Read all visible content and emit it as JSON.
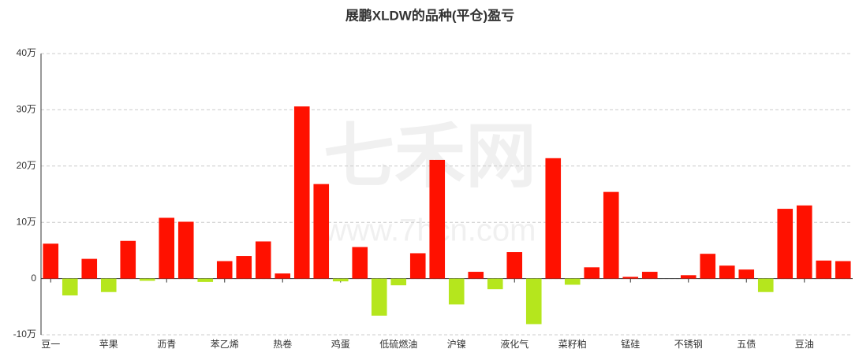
{
  "chart_data": {
    "type": "bar",
    "title": "展鹏XLDW的品种(平仓)盈亏",
    "watermark": "七禾网",
    "watermark_url": "www.7hcn.com",
    "categories": [
      "豆一",
      null,
      null,
      "苹果",
      null,
      null,
      "沥青",
      null,
      null,
      "苯乙烯",
      null,
      null,
      "热卷",
      null,
      null,
      "鸡蛋",
      null,
      null,
      "低硫燃油",
      null,
      null,
      "沪镍",
      null,
      null,
      "液化气",
      null,
      null,
      "菜籽粕",
      null,
      null,
      "锰硅",
      null,
      null,
      "不锈钢",
      null,
      null,
      "五债",
      null,
      null,
      "豆油",
      null,
      null
    ],
    "values": [
      6.2,
      -3.0,
      3.5,
      -2.4,
      6.7,
      -0.4,
      10.8,
      10.1,
      -0.6,
      3.1,
      4.0,
      6.6,
      0.9,
      30.6,
      16.8,
      -0.5,
      5.6,
      -6.6,
      -1.2,
      4.5,
      21.1,
      -4.6,
      1.2,
      -1.9,
      4.7,
      -8.1,
      21.4,
      -1.1,
      2.0,
      15.4,
      0.3,
      1.2,
      0,
      0.6,
      4.4,
      2.3,
      1.6,
      -2.4,
      12.4,
      13.0,
      3.2,
      3.1
    ],
    "positive_color": "#ff1100",
    "negative_color": "#b5e61d",
    "ylim": [
      -10,
      40
    ],
    "yticks": [
      {
        "value": -10,
        "label": "-10万"
      },
      0,
      {
        "value": 10,
        "label": "10万"
      },
      {
        "value": 20,
        "label": "20万"
      },
      {
        "value": 30,
        "label": "30万"
      },
      {
        "value": 40,
        "label": "40万"
      }
    ],
    "grid": true
  }
}
